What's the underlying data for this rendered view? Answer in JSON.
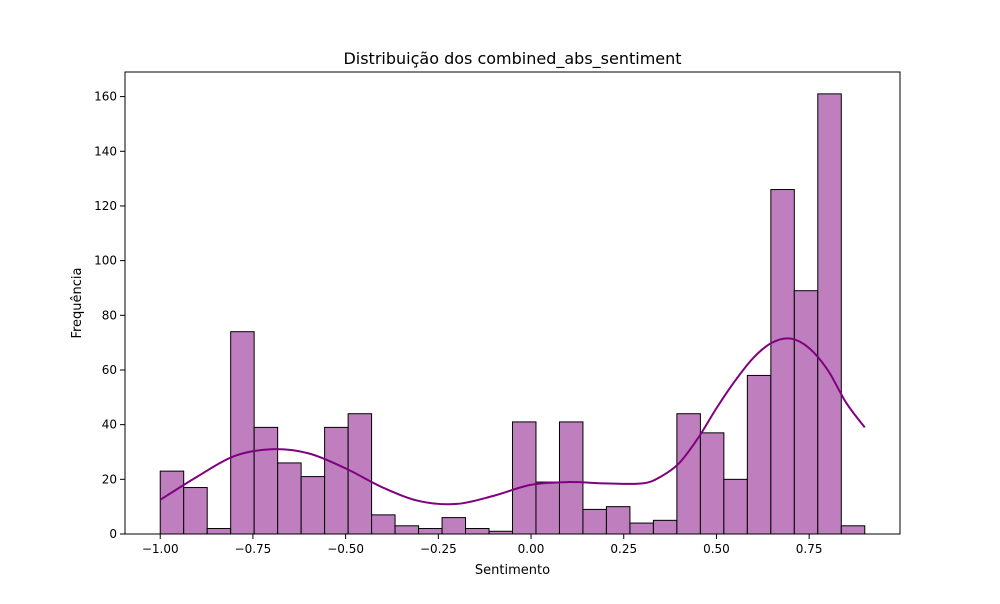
{
  "chart_data": {
    "type": "bar",
    "title": "Distribuição dos combined_abs_sentiment",
    "xlabel": "Sentimento",
    "ylabel": "Frequência",
    "xlim": [
      -1.095,
      0.995
    ],
    "ylim": [
      0,
      169
    ],
    "grid": false,
    "bar_color": "#bf7fbf",
    "edge_color": "#000000",
    "kde_color": "#800080",
    "bin_edges": [
      -1.0,
      -0.9367,
      -0.8733,
      -0.81,
      -0.7467,
      -0.6833,
      -0.62,
      -0.5567,
      -0.4933,
      -0.43,
      -0.3667,
      -0.3033,
      -0.24,
      -0.1767,
      -0.1133,
      -0.05,
      0.0133,
      0.0767,
      0.14,
      0.2033,
      0.2667,
      0.33,
      0.3933,
      0.4567,
      0.52,
      0.5833,
      0.6467,
      0.71,
      0.7733,
      0.8367,
      0.9
    ],
    "counts": [
      23,
      17,
      2,
      74,
      39,
      26,
      21,
      39,
      44,
      7,
      3,
      2,
      6,
      2,
      1,
      41,
      19,
      41,
      9,
      10,
      4,
      5,
      44,
      37,
      20,
      58,
      126,
      89,
      161,
      3
    ],
    "kde": {
      "x": [
        -1.0,
        -0.9,
        -0.8,
        -0.7,
        -0.6,
        -0.5,
        -0.4,
        -0.3,
        -0.2,
        -0.1,
        0.0,
        0.1,
        0.2,
        0.3,
        0.35,
        0.4,
        0.45,
        0.5,
        0.55,
        0.6,
        0.65,
        0.7,
        0.75,
        0.8,
        0.85,
        0.9
      ],
      "y": [
        12.5,
        21,
        28.5,
        31,
        29.5,
        24,
        17,
        12,
        11,
        14,
        18,
        19,
        18.5,
        18.5,
        21,
        26,
        35,
        46,
        56,
        64.5,
        70,
        71.5,
        68,
        60,
        48,
        39
      ]
    },
    "x_ticks": [
      -1.0,
      -0.75,
      -0.5,
      -0.25,
      0.0,
      0.25,
      0.5,
      0.75
    ],
    "x_tick_labels": [
      "−1.00",
      "−0.75",
      "−0.50",
      "−0.25",
      "0.00",
      "0.25",
      "0.50",
      "0.75"
    ],
    "y_ticks": [
      0,
      20,
      40,
      60,
      80,
      100,
      120,
      140,
      160
    ],
    "y_tick_labels": [
      "0",
      "20",
      "40",
      "60",
      "80",
      "100",
      "120",
      "140",
      "160"
    ]
  }
}
